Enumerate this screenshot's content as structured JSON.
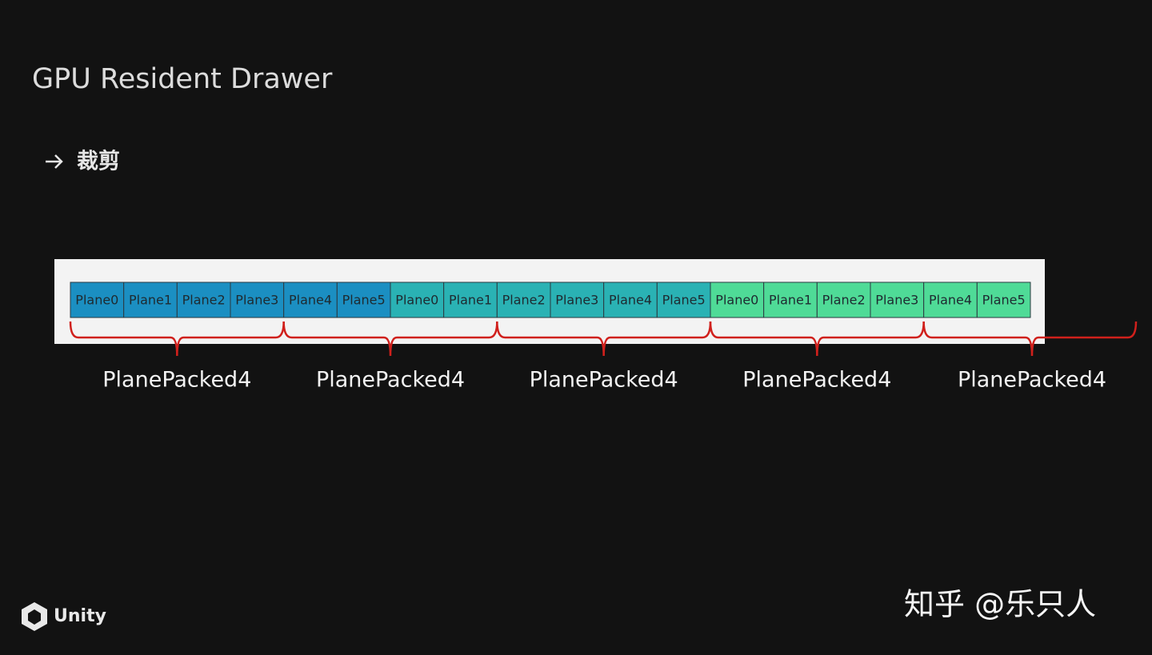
{
  "header": {
    "title": "GPU Resident Drawer"
  },
  "bullet": {
    "text": "裁剪"
  },
  "cells": [
    "Plane0",
    "Plane1",
    "Plane2",
    "Plane3",
    "Plane4",
    "Plane5",
    "Plane0",
    "Plane1",
    "Plane2",
    "Plane3",
    "Plane4",
    "Plane5",
    "Plane0",
    "Plane1",
    "Plane2",
    "Plane3",
    "Plane4",
    "Plane5"
  ],
  "groups": [
    "PlanePacked4",
    "PlanePacked4",
    "PlanePacked4",
    "PlanePacked4",
    "PlanePacked4"
  ],
  "footer": {
    "logo": "Unity",
    "watermark": "知乎 @乐只人"
  }
}
